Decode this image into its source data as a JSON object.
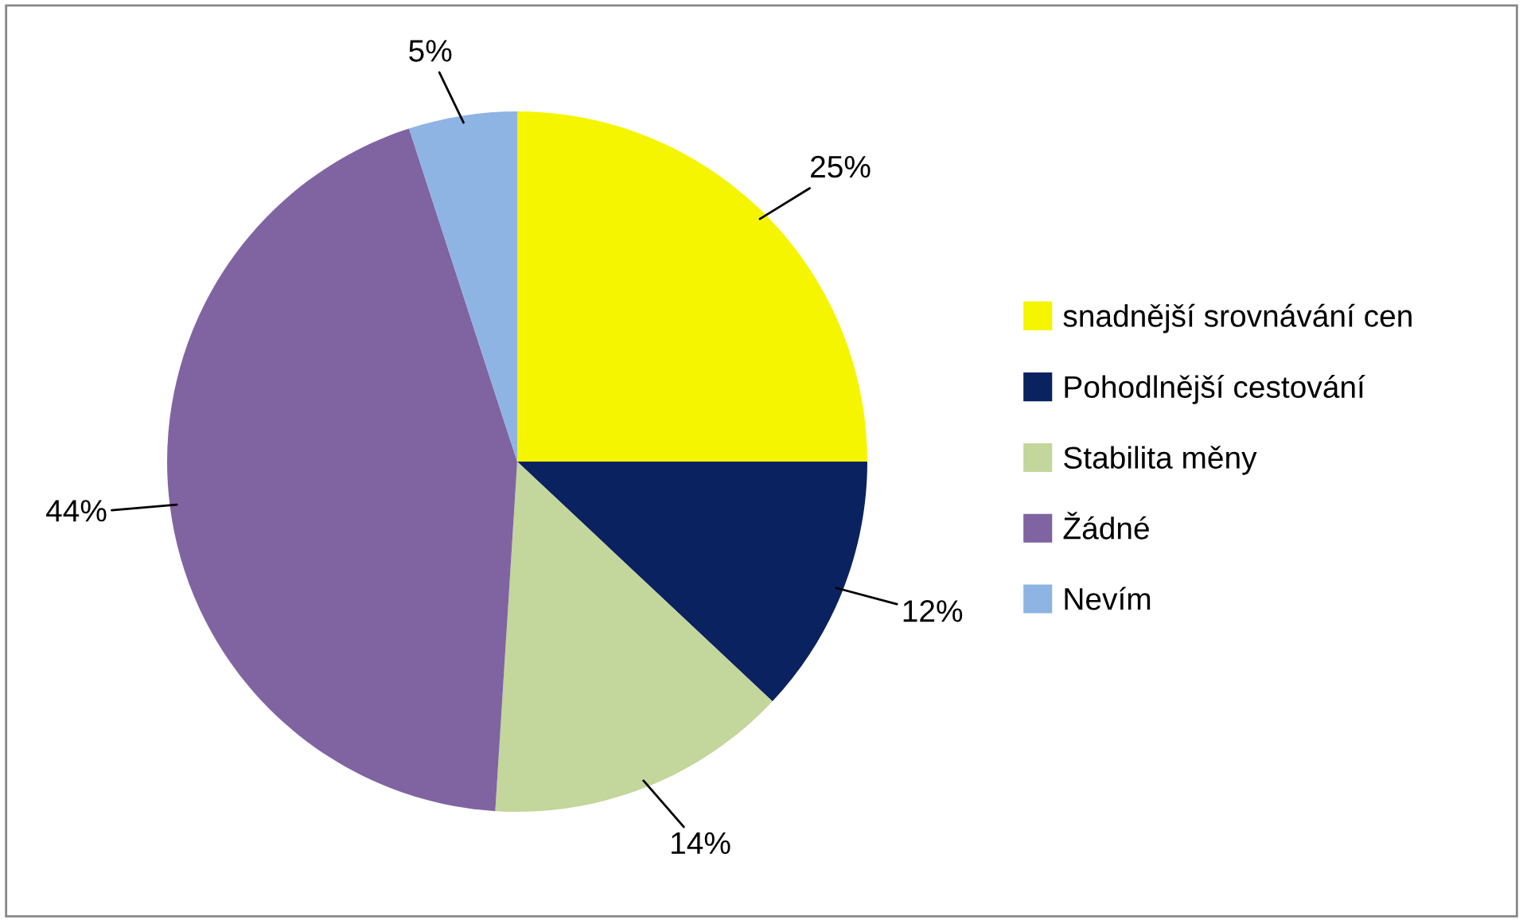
{
  "chart_data": {
    "type": "pie",
    "categories": [
      "snadnější srovnávání cen",
      "Pohodlnější cestování",
      "Stabilita měny",
      "Žádné",
      "Nevím"
    ],
    "values": [
      25,
      12,
      14,
      44,
      5
    ],
    "value_labels": [
      "25%",
      "12%",
      "14%",
      "44%",
      "5%"
    ],
    "colors": [
      "#f5f500",
      "#0b2260",
      "#c3d69b",
      "#8064a2",
      "#8eb4e3"
    ],
    "legend": "right"
  }
}
